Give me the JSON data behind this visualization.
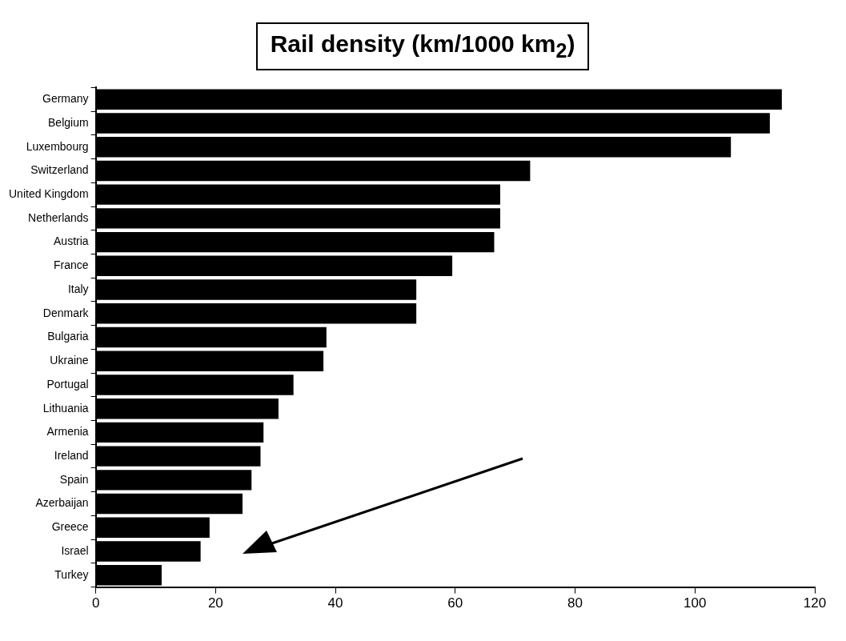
{
  "chart_data": {
    "type": "bar",
    "orientation": "horizontal",
    "title": "Rail density (km/1000 km$_{2}$)",
    "categories": [
      "Germany",
      "Belgium",
      "Luxembourg",
      "Switzerland",
      "United Kingdom",
      "Netherlands",
      "Austria",
      "France",
      "Italy",
      "Denmark",
      "Bulgaria",
      "Ukraine",
      "Portugal",
      "Lithuania",
      "Armenia",
      "Ireland",
      "Spain",
      "Azerbaijan",
      "Greece",
      "Israel",
      "Turkey"
    ],
    "values": [
      114.5,
      112.5,
      106,
      72.5,
      67.5,
      67.5,
      66.5,
      59.5,
      53.5,
      53.5,
      38.5,
      38,
      33,
      30.5,
      28,
      27.5,
      26,
      24.5,
      19,
      17.5,
      11
    ],
    "color": "#000000",
    "xlim": [
      0,
      120
    ],
    "xticks": [
      0,
      20,
      40,
      60,
      80,
      100,
      120
    ],
    "grid": false,
    "legend": false
  }
}
